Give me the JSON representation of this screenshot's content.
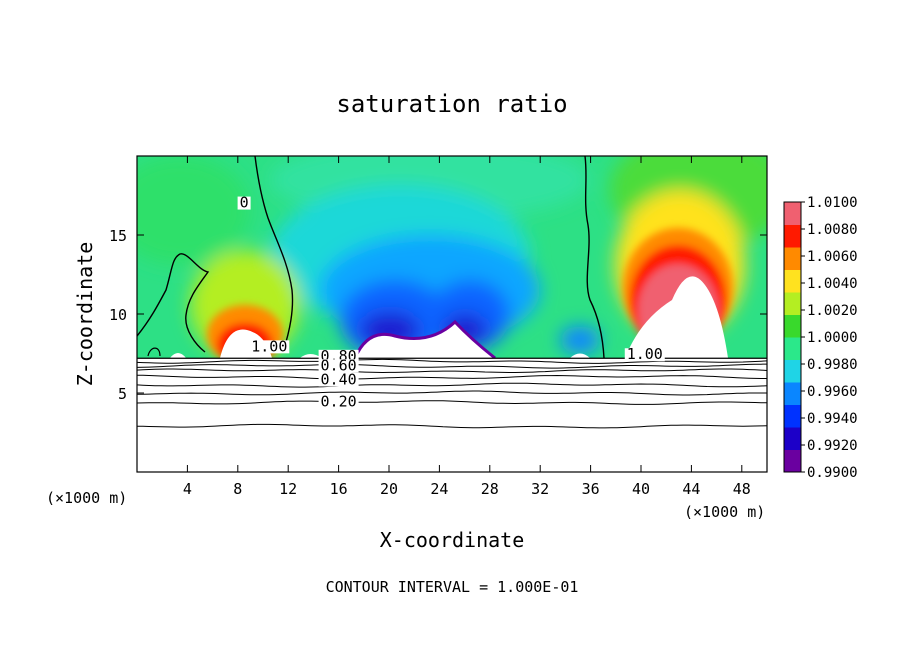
{
  "chart_data": {
    "type": "heatmap",
    "title": "saturation ratio",
    "xlabel": "X-coordinate",
    "ylabel": "Z-coordinate",
    "x_unit_note": "(×1000 m)",
    "xlim": [
      0,
      50
    ],
    "ylim": [
      0,
      20
    ],
    "x_ticks": [
      4,
      8,
      12,
      16,
      20,
      24,
      28,
      32,
      36,
      40,
      44,
      48
    ],
    "y_ticks": [
      5,
      10,
      15
    ],
    "footer": "CONTOUR INTERVAL = 1.000E-01",
    "colorbar": {
      "levels": [
        "0.9900",
        "0.9920",
        "0.9940",
        "0.9960",
        "0.9980",
        "1.0000",
        "1.0020",
        "1.0040",
        "1.0060",
        "1.0080",
        "1.0100"
      ],
      "colors": [
        "#6a00a0",
        "#1c00c8",
        "#0032ff",
        "#0a86ff",
        "#1fd4e6",
        "#2be88a",
        "#39d92c",
        "#b4ee22",
        "#ffe21f",
        "#ff8a00",
        "#ff1a00",
        "#f06070"
      ]
    },
    "ground_level_z": 7.2,
    "contour_labels": [
      {
        "text": "0",
        "x": 8.5,
        "z": 16.8
      },
      {
        "text": "1.00",
        "x": 10.5,
        "z": 7.7
      },
      {
        "text": "1.00",
        "x": 40.3,
        "z": 7.2
      },
      {
        "text": "0.80",
        "x": 16.0,
        "z": 7.1
      },
      {
        "text": "0.60",
        "x": 16.0,
        "z": 6.5
      },
      {
        "text": "0.40",
        "x": 16.0,
        "z": 5.6
      },
      {
        "text": "0.20",
        "x": 16.0,
        "z": 4.2
      }
    ],
    "below_ground_contours": [
      {
        "level": "0.80",
        "z": 7.0
      },
      {
        "level": "0.70",
        "z": 6.7
      },
      {
        "level": "0.60",
        "z": 6.4
      },
      {
        "level": "0.50",
        "z": 6.0
      },
      {
        "level": "0.40",
        "z": 5.5
      },
      {
        "level": "0.30",
        "z": 5.0
      },
      {
        "level": "0.20",
        "z": 4.4
      },
      {
        "level": "0.10",
        "z": 2.9
      }
    ],
    "features": [
      {
        "kind": "supersaturated-plume",
        "x_center": 9.0,
        "z_top": 10.5,
        "max_value": 1.01
      },
      {
        "kind": "supersaturated-plume",
        "x_center": 45.0,
        "z_top": 15.5,
        "max_value": 1.01
      },
      {
        "kind": "subsaturated-region",
        "x_range": [
          14,
          30
        ],
        "z_range": [
          7.2,
          14.5
        ],
        "min_value": 0.99
      }
    ]
  }
}
